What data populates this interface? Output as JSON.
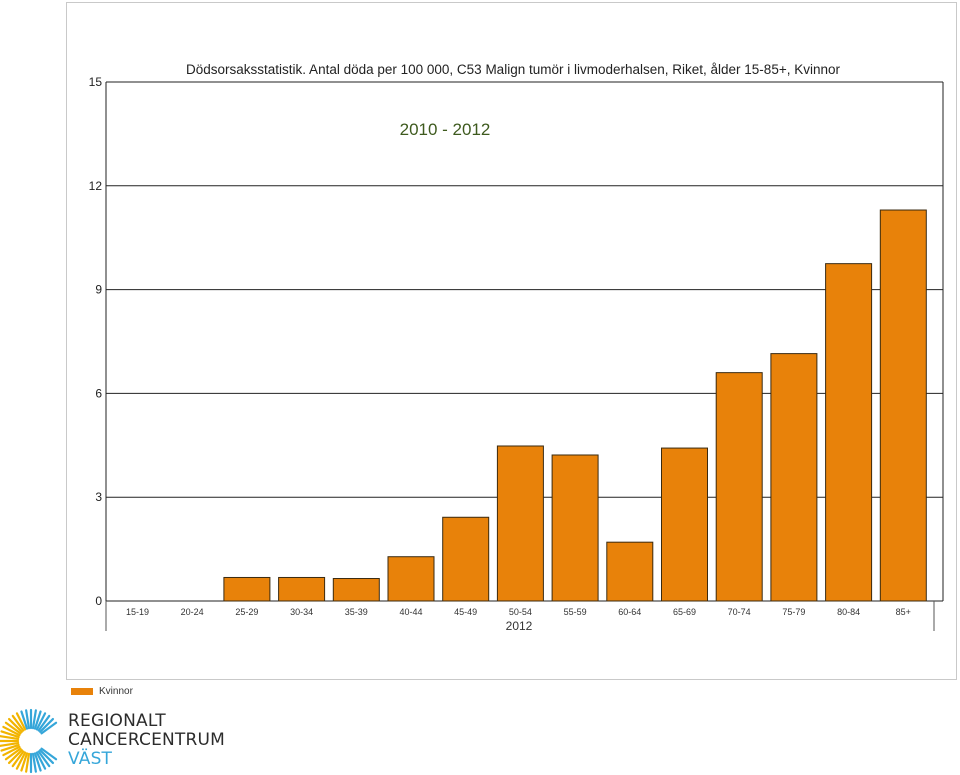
{
  "chart_data": {
    "type": "bar",
    "title": "Dödsorsaksstatistik. Antal döda per 100 000, C53 Malign tumör i livmoderhalsen, Riket, ålder 15-85+, Kvinnor",
    "overlay_label": "2010 - 2012",
    "categories": [
      "15-19",
      "20-24",
      "25-29",
      "30-34",
      "35-39",
      "40-44",
      "45-49",
      "50-54",
      "55-59",
      "60-64",
      "65-69",
      "70-74",
      "75-79",
      "80-84",
      "85+"
    ],
    "group_label": "2012",
    "series": [
      {
        "name": "Kvinnor",
        "values": [
          0,
          0,
          0.68,
          0.68,
          0.65,
          1.28,
          2.42,
          4.48,
          4.22,
          1.7,
          4.42,
          6.6,
          7.15,
          9.75,
          11.3
        ],
        "color": "#e8820a"
      }
    ],
    "yticks": [
      0,
      3,
      6,
      9,
      12,
      15
    ],
    "ylim": [
      0,
      15
    ],
    "grid": true,
    "legend_position": "bottom-left"
  },
  "logo": {
    "line1": "REGIONALT",
    "line2": "CANCERCENTRUM",
    "line3": "VÄST",
    "accent_color": "#35a6d9",
    "ring_color": "#f2b400"
  }
}
